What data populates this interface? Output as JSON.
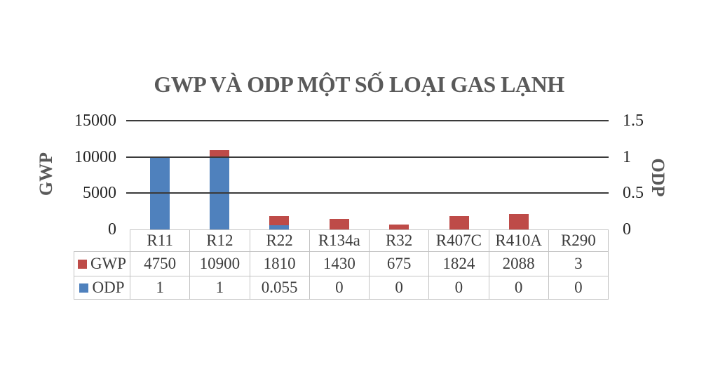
{
  "title": "GWP VÀ ODP MỘT SỐ LOẠI GAS LẠNH",
  "left_axis": {
    "title": "GWP",
    "ticks": [
      "15000",
      "10000",
      "5000",
      "0"
    ]
  },
  "right_axis": {
    "title": "ODP",
    "ticks": [
      "1.5",
      "1",
      "0.5",
      "0"
    ]
  },
  "colors": {
    "gwp_red": "#BE4B48",
    "odp_blue": "#4F81BD",
    "gridline": "#3a3a3a",
    "table_border": "#c3c3c3",
    "title_gray": "#595959"
  },
  "chart_data": {
    "type": "bar",
    "title": "GWP VÀ ODP MỘT SỐ LOẠI GAS LẠNH",
    "categories": [
      "R11",
      "R12",
      "R22",
      "R134a",
      "R32",
      "R407C",
      "R410A",
      "R290"
    ],
    "series": [
      {
        "name": "GWP",
        "axis": "left",
        "color": "#BE4B48",
        "values": [
          4750,
          10900,
          1810,
          1430,
          675,
          1824,
          2088,
          3
        ]
      },
      {
        "name": "ODP",
        "axis": "right",
        "color": "#4F81BD",
        "values": [
          1,
          1,
          0.055,
          0,
          0,
          0,
          0,
          0
        ]
      }
    ],
    "xlabel": "",
    "left_ylabel": "GWP",
    "right_ylabel": "ODP",
    "left_ylim": [
      0,
      15000
    ],
    "right_ylim": [
      0,
      1.5
    ],
    "left_ticks": [
      0,
      5000,
      10000,
      15000
    ],
    "right_ticks": [
      0,
      0.5,
      1,
      1.5
    ],
    "gridlines": true,
    "legend_position": "data-table-left",
    "bar_overlap": "ODP bars drawn in front of GWP bars at same x positions"
  }
}
